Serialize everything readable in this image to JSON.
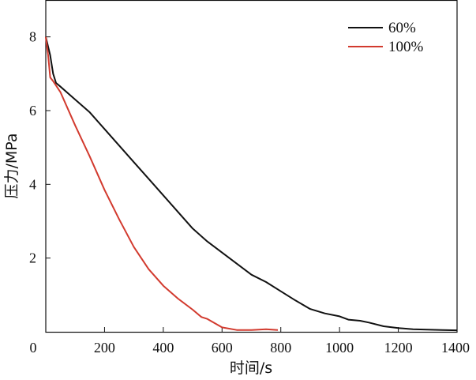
{
  "chart_data": {
    "type": "line",
    "xlabel": "时间/s",
    "ylabel": "压力/MPa",
    "xlim": [
      0,
      1400
    ],
    "ylim": [
      0,
      9
    ],
    "xticks": [
      "0",
      "200",
      "400",
      "600",
      "800",
      "1000",
      "1200",
      "1400"
    ],
    "yticks": [
      "2",
      "4",
      "6",
      "8"
    ],
    "legend_position": "top-right",
    "grid": false,
    "series": [
      {
        "name": "60%",
        "color": "#111111",
        "points": [
          [
            0,
            8.0
          ],
          [
            15,
            7.5
          ],
          [
            25,
            7.0
          ],
          [
            35,
            6.75
          ],
          [
            50,
            6.65
          ],
          [
            100,
            6.3
          ],
          [
            150,
            5.95
          ],
          [
            200,
            5.5
          ],
          [
            250,
            5.05
          ],
          [
            300,
            4.6
          ],
          [
            350,
            4.15
          ],
          [
            400,
            3.7
          ],
          [
            450,
            3.25
          ],
          [
            500,
            2.8
          ],
          [
            550,
            2.45
          ],
          [
            600,
            2.15
          ],
          [
            650,
            1.85
          ],
          [
            700,
            1.55
          ],
          [
            750,
            1.35
          ],
          [
            800,
            1.1
          ],
          [
            850,
            0.85
          ],
          [
            900,
            0.62
          ],
          [
            950,
            0.5
          ],
          [
            1000,
            0.42
          ],
          [
            1030,
            0.33
          ],
          [
            1070,
            0.3
          ],
          [
            1100,
            0.25
          ],
          [
            1150,
            0.15
          ],
          [
            1200,
            0.1
          ],
          [
            1250,
            0.07
          ],
          [
            1300,
            0.06
          ],
          [
            1350,
            0.05
          ],
          [
            1400,
            0.04
          ]
        ]
      },
      {
        "name": "100%",
        "color": "#d23a2e",
        "points": [
          [
            0,
            8.0
          ],
          [
            8,
            7.5
          ],
          [
            15,
            6.9
          ],
          [
            25,
            6.8
          ],
          [
            50,
            6.5
          ],
          [
            100,
            5.6
          ],
          [
            150,
            4.75
          ],
          [
            200,
            3.85
          ],
          [
            250,
            3.05
          ],
          [
            300,
            2.3
          ],
          [
            350,
            1.7
          ],
          [
            400,
            1.25
          ],
          [
            450,
            0.9
          ],
          [
            500,
            0.6
          ],
          [
            530,
            0.4
          ],
          [
            550,
            0.35
          ],
          [
            600,
            0.12
          ],
          [
            650,
            0.05
          ],
          [
            700,
            0.05
          ],
          [
            750,
            0.07
          ],
          [
            790,
            0.05
          ]
        ]
      }
    ]
  }
}
